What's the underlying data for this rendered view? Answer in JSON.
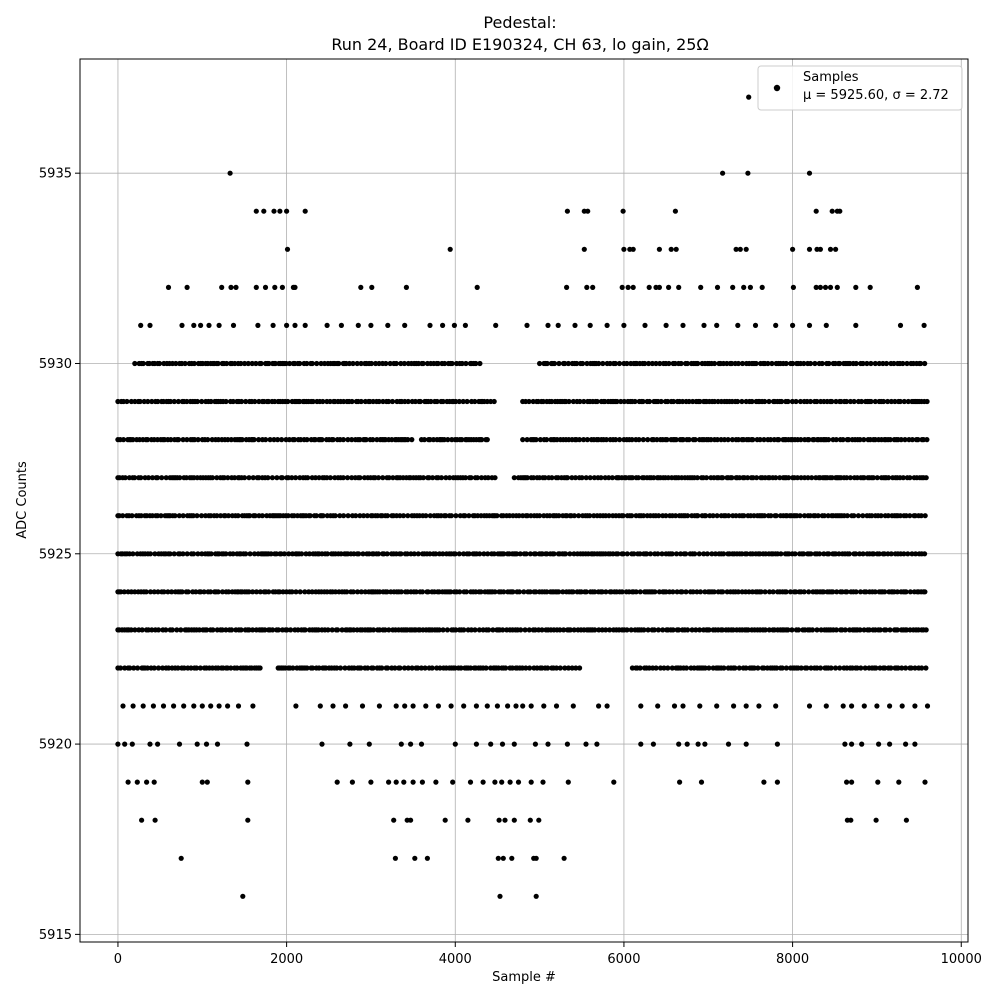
{
  "chart_data": {
    "type": "scatter",
    "title_line1": "Pedestal:",
    "title_line2": "Run 24, Board ID E190324, CH 63, lo gain, 25Ω",
    "xlabel": "Sample #",
    "ylabel": "ADC Counts",
    "xlim": [
      -450,
      10080
    ],
    "ylim": [
      5914.8,
      5938.0
    ],
    "x_ticks": [
      0,
      2000,
      4000,
      6000,
      8000,
      10000
    ],
    "x_tick_labels": [
      "0",
      "2000",
      "4000",
      "6000",
      "8000",
      "10000"
    ],
    "y_ticks": [
      5915,
      5920,
      5925,
      5930,
      5935
    ],
    "y_tick_labels": [
      "5915",
      "5920",
      "5925",
      "5930",
      "5935"
    ],
    "grid": true,
    "marker_color": "#000000",
    "legend": {
      "placement": "top-right",
      "label": "Samples",
      "stats": "μ = 5925.60, σ = 2.72"
    },
    "series": [
      {
        "name": "Samples",
        "levels": [
          {
            "y": 5929,
            "ranges": [
              [
                0,
                4500
              ],
              [
                4800,
                9600
              ]
            ]
          },
          {
            "y": 5928,
            "ranges": [
              [
                0,
                3500
              ],
              [
                3600,
                4400
              ],
              [
                4800,
                9600
              ]
            ]
          },
          {
            "y": 5927,
            "ranges": [
              [
                0,
                4500
              ],
              [
                4700,
                9600
              ]
            ]
          },
          {
            "y": 5926,
            "ranges": [
              [
                0,
                9600
              ]
            ]
          },
          {
            "y": 5925,
            "ranges": [
              [
                0,
                9600
              ]
            ]
          },
          {
            "y": 5924,
            "ranges": [
              [
                0,
                9600
              ]
            ]
          },
          {
            "y": 5923,
            "ranges": [
              [
                0,
                9600
              ]
            ]
          },
          {
            "y": 5922,
            "ranges": [
              [
                0,
                1700
              ],
              [
                1900,
                5500
              ],
              [
                6100,
                9600
              ]
            ]
          },
          {
            "y": 5930,
            "ranges": [
              [
                200,
                4300
              ],
              [
                5000,
                9600
              ]
            ]
          }
        ],
        "scattered": [
          {
            "y": 5937,
            "x": [
              7480
            ]
          },
          {
            "y": 5935,
            "x": [
              1330,
              7170,
              7470,
              8200
            ]
          },
          {
            "y": 5934,
            "x": [
              1640,
              1730,
              1850,
              1920,
              2000,
              2220,
              5330,
              5530,
              5570,
              5990,
              6610,
              8280,
              8470,
              8530,
              8560
            ]
          },
          {
            "y": 5933,
            "x": [
              2010,
              3940,
              5530,
              6000,
              6070,
              6110,
              6420,
              6560,
              6620,
              7330,
              7380,
              7450,
              8000,
              8200,
              8290,
              8330,
              8450,
              8510
            ]
          },
          {
            "y": 5932,
            "x": [
              600,
              820,
              1230,
              1340,
              1400,
              1640,
              1750,
              1860,
              1950,
              2080,
              2100,
              2880,
              3010,
              3420,
              4260,
              5320,
              5560,
              5630,
              5980,
              6050,
              6110,
              6300,
              6380,
              6420,
              6530,
              6650,
              6910,
              7110,
              7290,
              7420,
              7500,
              7640,
              8010,
              8280,
              8330,
              8390,
              8450,
              8530,
              8750,
              8920,
              9480
            ]
          },
          {
            "y": 5931,
            "x": [
              270,
              380,
              760,
              900,
              980,
              1080,
              1200,
              1370,
              1660,
              1840,
              2000,
              2100,
              2220,
              2480,
              2650,
              2850,
              3000,
              3200,
              3400,
              3700,
              3850,
              3990,
              4120,
              4480,
              4850,
              5100,
              5220,
              5420,
              5600,
              5800,
              6000,
              6250,
              6500,
              6700,
              6950,
              7100,
              7350,
              7560,
              7800,
              8000,
              8200,
              8400,
              8750,
              9280,
              9560
            ]
          },
          {
            "y": 5921,
            "x": [
              60,
              180,
              300,
              420,
              540,
              660,
              780,
              900,
              1000,
              1100,
              1200,
              1300,
              1430,
              1600,
              2110,
              2400,
              2550,
              2700,
              2900,
              3100,
              3300,
              3400,
              3500,
              3650,
              3800,
              3950,
              4100,
              4250,
              4380,
              4500,
              4620,
              4720,
              4800,
              4900,
              5050,
              5200,
              5400,
              5700,
              5800,
              6200,
              6400,
              6600,
              6700,
              6900,
              7100,
              7300,
              7450,
              7600,
              7800,
              8200,
              8400,
              8600,
              8700,
              8850,
              9000,
              9150,
              9300,
              9450,
              9600
            ]
          },
          {
            "y": 5920,
            "x": [
              0,
              80,
              170,
              380,
              470,
              730,
              940,
              1050,
              1180,
              1530,
              2420,
              2750,
              2980,
              3360,
              3470,
              3600,
              4000,
              4250,
              4420,
              4560,
              4700,
              4950,
              5100,
              5330,
              5550,
              5680,
              6200,
              6350,
              6650,
              6750,
              6880,
              6960,
              7240,
              7450,
              7820,
              8620,
              8700,
              8820,
              9020,
              9150,
              9340,
              9450
            ]
          },
          {
            "y": 5919,
            "x": [
              120,
              230,
              340,
              430,
              1000,
              1060,
              1540,
              2600,
              2780,
              3000,
              3210,
              3300,
              3390,
              3500,
              3610,
              3770,
              3970,
              4180,
              4330,
              4470,
              4550,
              4650,
              4750,
              4900,
              5040,
              5340,
              5880,
              6660,
              6920,
              7660,
              7820,
              8640,
              8700,
              9010,
              9260,
              9570
            ]
          },
          {
            "y": 5918,
            "x": [
              280,
              440,
              1540,
              3270,
              3430,
              3470,
              3880,
              4150,
              4520,
              4590,
              4700,
              4890,
              4990,
              8650,
              8690,
              8990,
              9350
            ]
          },
          {
            "y": 5917,
            "x": [
              750,
              3290,
              3520,
              3670,
              4510,
              4570,
              4670,
              4930,
              4960,
              5290
            ]
          },
          {
            "y": 5916,
            "x": [
              1480,
              4530,
              4960
            ]
          }
        ]
      }
    ]
  }
}
